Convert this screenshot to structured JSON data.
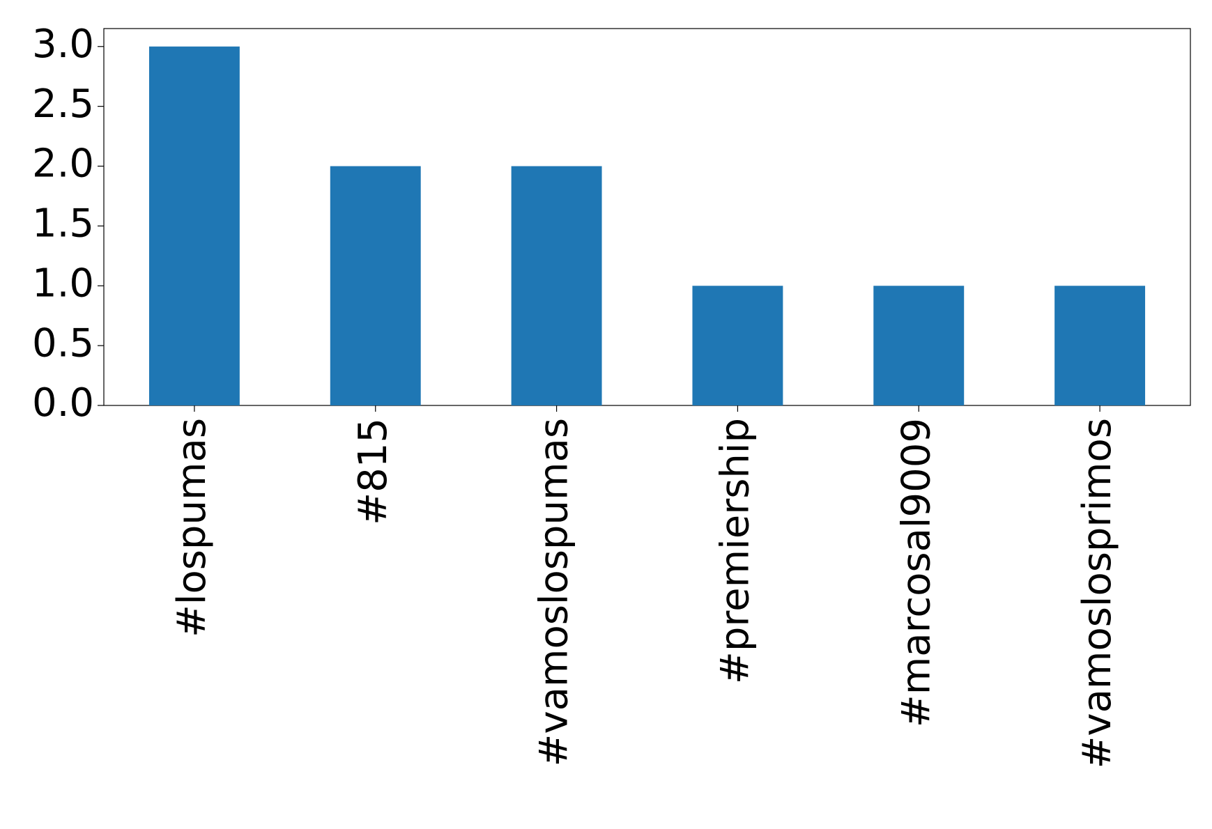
{
  "chart_data": {
    "type": "bar",
    "categories": [
      "#lospumas",
      "#815",
      "#vamoslospumas",
      "#premiership",
      "#marcosal9009",
      "#vamoslosprimos"
    ],
    "values": [
      3,
      2,
      2,
      1,
      1,
      1
    ],
    "color": "#1f77b4",
    "ylim": [
      0,
      3.15
    ],
    "yticks": [
      {
        "value": 0,
        "label": "0.0"
      },
      {
        "value": 0.5,
        "label": "0.5"
      },
      {
        "value": 1,
        "label": "1.0"
      },
      {
        "value": 1.5,
        "label": "1.5"
      },
      {
        "value": 2,
        "label": "2.0"
      },
      {
        "value": 2.5,
        "label": "2.5"
      },
      {
        "value": 3,
        "label": "3.0"
      }
    ],
    "grid": false
  }
}
